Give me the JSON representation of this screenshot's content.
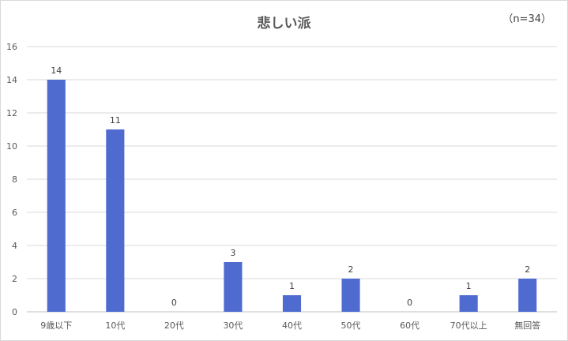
{
  "chart_data": {
    "type": "bar",
    "title": "悲しい派",
    "note": "（n=34）",
    "categories": [
      "9歳以下",
      "10代",
      "20代",
      "30代",
      "40代",
      "50代",
      "60代",
      "70代以上",
      "無回答"
    ],
    "values": [
      14,
      11,
      0,
      3,
      1,
      2,
      0,
      1,
      2
    ],
    "ylim": [
      0,
      16
    ],
    "yticks": [
      0,
      2,
      4,
      6,
      8,
      10,
      12,
      14,
      16
    ],
    "grid": true,
    "legend": "none",
    "bar_color": "#4F6BD0",
    "data_labels": true
  }
}
